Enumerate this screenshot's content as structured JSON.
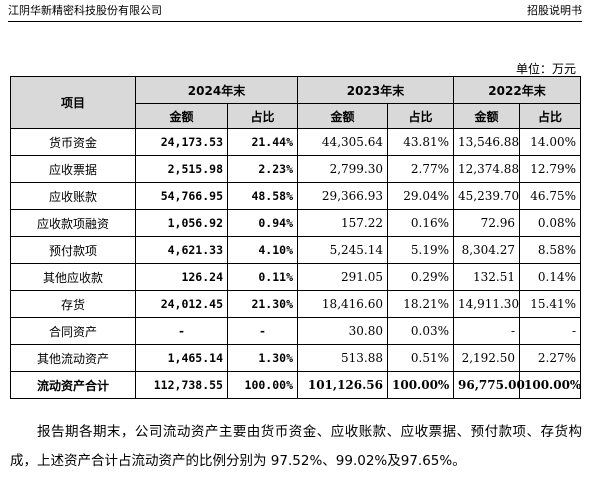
{
  "header": {
    "company": "江阴华新精密科技股份有限公司",
    "doc": "招股说明书"
  },
  "unit": "单位：万元",
  "table": {
    "item_header": "项目",
    "years": [
      "2024年末",
      "2023年末",
      "2022年末"
    ],
    "amount_header": "金额",
    "ratio_header": "占比",
    "rows": [
      {
        "label": "货币资金",
        "v": [
          "24,173.53",
          "21.44%",
          "44,305.64",
          "43.81%",
          "13,546.88",
          "14.00%"
        ]
      },
      {
        "label": "应收票据",
        "v": [
          "2,515.98",
          "2.23%",
          "2,799.30",
          "2.77%",
          "12,374.88",
          "12.79%"
        ]
      },
      {
        "label": "应收账款",
        "v": [
          "54,766.95",
          "48.58%",
          "29,366.93",
          "29.04%",
          "45,239.70",
          "46.75%"
        ]
      },
      {
        "label": "应收款项融资",
        "v": [
          "1,056.92",
          "0.94%",
          "157.22",
          "0.16%",
          "72.96",
          "0.08%"
        ]
      },
      {
        "label": "预付款项",
        "v": [
          "4,621.33",
          "4.10%",
          "5,245.14",
          "5.19%",
          "8,304.27",
          "8.58%"
        ]
      },
      {
        "label": "其他应收款",
        "v": [
          "126.24",
          "0.11%",
          "291.05",
          "0.29%",
          "132.51",
          "0.14%"
        ]
      },
      {
        "label": "存货",
        "v": [
          "24,012.45",
          "21.30%",
          "18,416.60",
          "18.21%",
          "14,911.30",
          "15.41%"
        ]
      },
      {
        "label": "合同资产",
        "v": [
          "-",
          "-",
          "30.80",
          "0.03%",
          "-",
          "-"
        ]
      },
      {
        "label": "其他流动资产",
        "v": [
          "1,465.14",
          "1.30%",
          "513.88",
          "0.51%",
          "2,192.50",
          "2.27%"
        ]
      },
      {
        "label": "流动资产合计",
        "v": [
          "112,738.55",
          "100.00%",
          "101,126.56",
          "100.00%",
          "96,775.00",
          "100.00%"
        ]
      }
    ]
  },
  "paragraph": "报告期各期末，公司流动资产主要由货币资金、应收账款、应收票据、预付款项、存货构成，上述资产合计占流动资产的比例分别为 97.52%、99.02%及97.65%。"
}
